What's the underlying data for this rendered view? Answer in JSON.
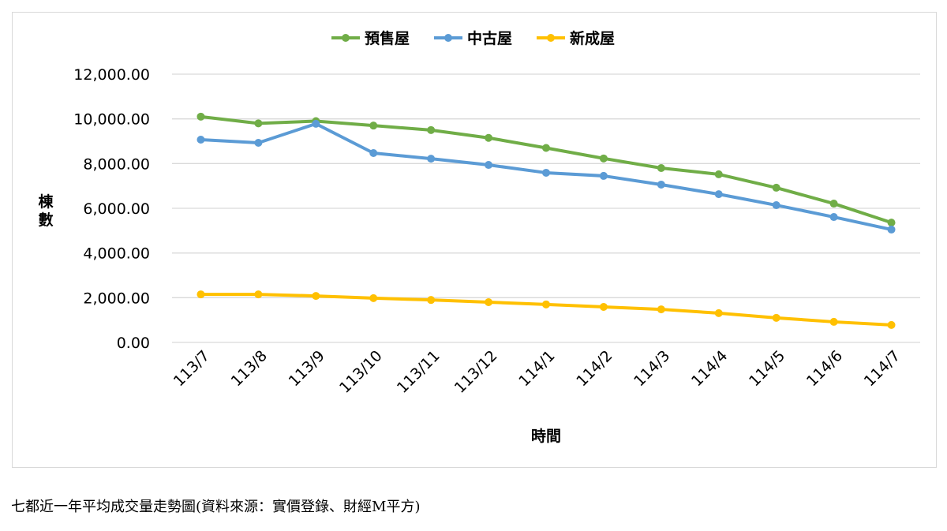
{
  "chart_data": {
    "type": "line",
    "title": "",
    "xlabel": "時間",
    "ylabel": "棟數",
    "ylim": [
      0,
      12000
    ],
    "yticks": [
      0,
      2000,
      4000,
      6000,
      8000,
      10000,
      12000
    ],
    "ytick_labels": [
      "0.00",
      "2,000.00",
      "4,000.00",
      "6,000.00",
      "8,000.00",
      "10,000.00",
      "12,000.00"
    ],
    "grid": true,
    "legend_position": "top",
    "categories": [
      "113/7",
      "113/8",
      "113/9",
      "113/10",
      "113/11",
      "113/12",
      "114/1",
      "114/2",
      "114/3",
      "114/4",
      "114/5",
      "114/6",
      "114/7"
    ],
    "series": [
      {
        "name": "預售屋",
        "color": "#70ad47",
        "values": [
          10100,
          9800,
          9900,
          9700,
          9500,
          9150,
          8700,
          8230,
          7800,
          7520,
          6920,
          6210,
          5360
        ]
      },
      {
        "name": "中古屋",
        "color": "#5b9bd5",
        "values": [
          9070,
          8930,
          9780,
          8470,
          8220,
          7940,
          7590,
          7450,
          7060,
          6630,
          6140,
          5610,
          5050
        ]
      },
      {
        "name": "新成屋",
        "color": "#ffc000",
        "values": [
          2150,
          2150,
          2080,
          1980,
          1900,
          1800,
          1700,
          1590,
          1480,
          1310,
          1100,
          920,
          780
        ]
      }
    ]
  },
  "caption": "七都近一年平均成交量走勢圖(資料來源：實價登錄、財經M平方)"
}
